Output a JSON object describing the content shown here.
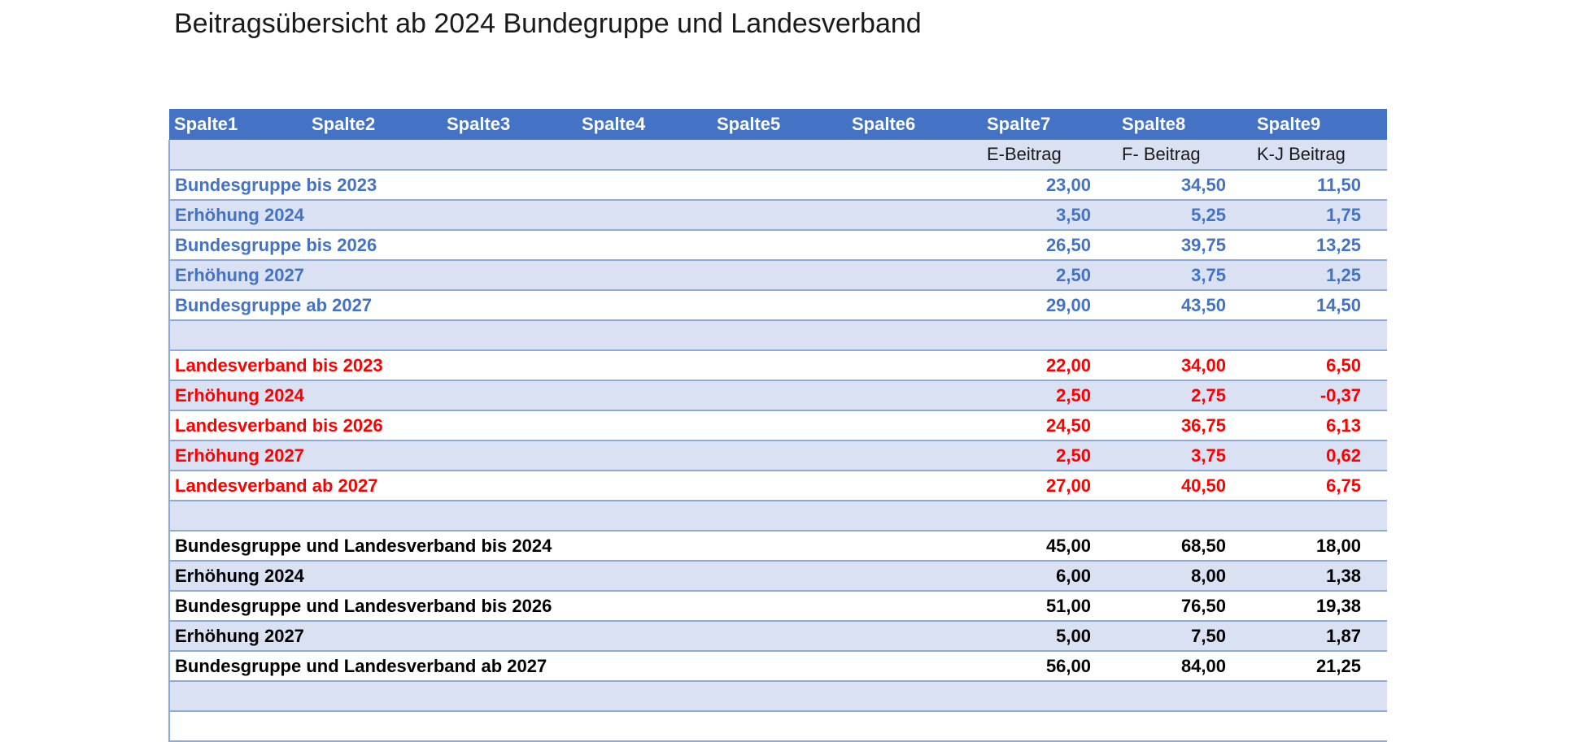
{
  "title": "Beitragsübersicht ab 2024 Bundegruppe und Landesverband",
  "headers": [
    "Spalte1",
    "Spalte2",
    "Spalte3",
    "Spalte4",
    "Spalte5",
    "Spalte6",
    "Spalte7",
    "Spalte8",
    "Spalte9"
  ],
  "subheaders": {
    "col7": "E-Beitrag",
    "col8": "F- Beitrag",
    "col9": "K-J Beitrag"
  },
  "colors": {
    "header_bg": "#4472c4",
    "band": "#d9e1f2",
    "blue_text": "#4472c4",
    "red_text": "#ff0000",
    "black_text": "#000000"
  },
  "rows": [
    {
      "label": "Bundesgruppe bis 2023",
      "e": "23,00",
      "f": "34,50",
      "kj": "11,50",
      "group": "blue"
    },
    {
      "label": "Erhöhung 2024",
      "e": "3,50",
      "f": "5,25",
      "kj": "1,75",
      "group": "blue"
    },
    {
      "label": "Bundesgruppe bis 2026",
      "e": "26,50",
      "f": "39,75",
      "kj": "13,25",
      "group": "blue"
    },
    {
      "label": "Erhöhung 2027",
      "e": "2,50",
      "f": "3,75",
      "kj": "1,25",
      "group": "blue"
    },
    {
      "label": "Bundesgruppe ab 2027",
      "e": "29,00",
      "f": "43,50",
      "kj": "14,50",
      "group": "blue"
    },
    {
      "label": "",
      "e": "",
      "f": "",
      "kj": "",
      "group": "empty"
    },
    {
      "label": "Landesverband bis 2023",
      "e": "22,00",
      "f": "34,00",
      "kj": "6,50",
      "group": "red"
    },
    {
      "label": "Erhöhung 2024",
      "e": "2,50",
      "f": "2,75",
      "kj": "-0,37",
      "group": "red"
    },
    {
      "label": "Landesverband bis 2026",
      "e": "24,50",
      "f": "36,75",
      "kj": "6,13",
      "group": "red"
    },
    {
      "label": "Erhöhung 2027",
      "e": "2,50",
      "f": "3,75",
      "kj": "0,62",
      "group": "red"
    },
    {
      "label": "Landesverband ab 2027",
      "e": "27,00",
      "f": "40,50",
      "kj": "6,75",
      "group": "red"
    },
    {
      "label": "",
      "e": "",
      "f": "",
      "kj": "",
      "group": "empty"
    },
    {
      "label": "Bundesgruppe und Landesverband bis 2024",
      "e": "45,00",
      "f": "68,50",
      "kj": "18,00",
      "group": "black"
    },
    {
      "label": "Erhöhung 2024",
      "e": "6,00",
      "f": "8,00",
      "kj": "1,38",
      "group": "black"
    },
    {
      "label": "Bundesgruppe und Landesverband bis 2026",
      "e": "51,00",
      "f": "76,50",
      "kj": "19,38",
      "group": "black"
    },
    {
      "label": "Erhöhung 2027",
      "e": "5,00",
      "f": "7,50",
      "kj": "1,87",
      "group": "black"
    },
    {
      "label": "Bundesgruppe und Landesverband ab 2027",
      "e": "56,00",
      "f": "84,00",
      "kj": "21,25",
      "group": "black"
    },
    {
      "label": "",
      "e": "",
      "f": "",
      "kj": "",
      "group": "empty"
    },
    {
      "label": "",
      "e": "",
      "f": "",
      "kj": "",
      "group": "empty"
    }
  ]
}
